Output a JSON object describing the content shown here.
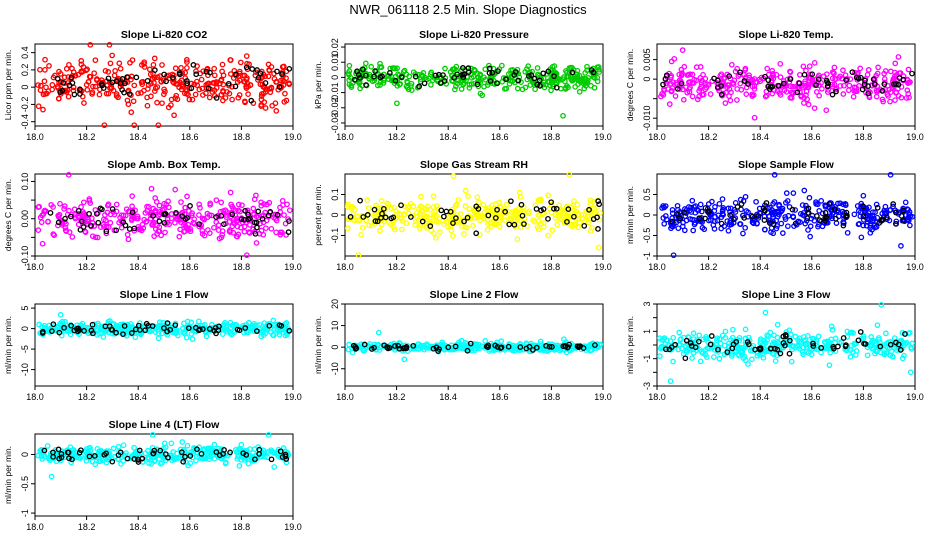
{
  "title": "NWR_061118  2.5 Min. Slope Diagnostics",
  "colors": {
    "red": "#ff0000",
    "green": "#00cc00",
    "magenta": "#ff00ff",
    "yellow": "#ffff00",
    "blue": "#0000ff",
    "cyan": "#00ffff",
    "overlay": "#000000"
  },
  "chart_data": [
    {
      "type": "scatter",
      "title": "Slope Li-820 CO2",
      "ylabel": "Licor ppm per min.",
      "xlim": [
        18.0,
        19.0
      ],
      "ylim": [
        -0.45,
        0.5
      ],
      "xticks": [
        18.0,
        18.2,
        18.4,
        18.6,
        18.8,
        19.0
      ],
      "yticks": [
        -0.4,
        -0.2,
        0.0,
        0.2,
        0.4
      ],
      "color": "red",
      "center": 0.05,
      "spread": 0.18,
      "series_description": "dense colored points with black overlay points"
    },
    {
      "type": "scatter",
      "title": "Slope Li-820 Pressure",
      "ylabel": "kPa per min.",
      "xlim": [
        18.0,
        19.0
      ],
      "ylim": [
        -0.032,
        0.022
      ],
      "xticks": [
        18.0,
        18.2,
        18.4,
        18.6,
        18.8,
        19.0
      ],
      "yticks": [
        -0.03,
        -0.02,
        -0.01,
        0.0,
        0.01,
        0.02
      ],
      "color": "green",
      "center": 0.0,
      "spread": 0.006
    },
    {
      "type": "scatter",
      "title": "Slope Li-820 Temp.",
      "ylabel": "degrees C per min.",
      "xlim": [
        18.0,
        19.0
      ],
      "ylim": [
        -0.012,
        0.009
      ],
      "xticks": [
        18.0,
        18.2,
        18.4,
        18.6,
        18.8,
        19.0
      ],
      "yticks": [
        -0.01,
        -0.005,
        0.0,
        0.005
      ],
      "yticklabels": [
        "-0.010",
        "",
        "0",
        "0.005"
      ],
      "color": "magenta",
      "center": -0.001,
      "spread": 0.003
    },
    {
      "type": "scatter",
      "title": "Slope Amb. Box Temp.",
      "ylabel": "degrees C per min.",
      "xlim": [
        18.0,
        19.0
      ],
      "ylim": [
        -0.1,
        0.12
      ],
      "xticks": [
        18.0,
        18.2,
        18.4,
        18.6,
        18.8,
        19.0
      ],
      "yticks": [
        -0.1,
        -0.05,
        0.0,
        0.05,
        0.1
      ],
      "yticklabels": [
        "-0.10",
        "",
        "0.00",
        "",
        "0.10"
      ],
      "color": "magenta",
      "center": 0.0,
      "spread": 0.035
    },
    {
      "type": "scatter",
      "title": "Slope Gas Stream RH",
      "ylabel": "percent per min.",
      "xlim": [
        18.0,
        19.0
      ],
      "ylim": [
        -0.2,
        0.2
      ],
      "xticks": [
        18.0,
        18.2,
        18.4,
        18.6,
        18.8,
        19.0
      ],
      "yticks": [
        -0.1,
        0.0,
        0.1
      ],
      "color": "yellow",
      "center": 0.0,
      "spread": 0.06
    },
    {
      "type": "scatter",
      "title": "Slope Sample Flow",
      "ylabel": "ml/min per min.",
      "xlim": [
        18.0,
        19.0
      ],
      "ylim": [
        -1.0,
        1.0
      ],
      "xticks": [
        18.0,
        18.2,
        18.4,
        18.6,
        18.8,
        19.0
      ],
      "yticks": [
        -1.0,
        -0.5,
        0.0,
        0.5
      ],
      "yticklabels": [
        "-1",
        "-0.5",
        "0",
        "0.5"
      ],
      "color": "blue",
      "center": 0.0,
      "spread": 0.28
    },
    {
      "type": "scatter",
      "title": "Slope Line 1 Flow",
      "ylabel": "ml/min per min.",
      "xlim": [
        18.0,
        19.0
      ],
      "ylim": [
        -14,
        6
      ],
      "xticks": [
        18.0,
        18.2,
        18.4,
        18.6,
        18.8,
        19.0
      ],
      "yticks": [
        -10,
        -5,
        0,
        5
      ],
      "color": "cyan",
      "center": 0.0,
      "spread": 1.2
    },
    {
      "type": "scatter",
      "title": "Slope Line 2 Flow",
      "ylabel": "ml/min per min.",
      "xlim": [
        18.0,
        19.0
      ],
      "ylim": [
        -18,
        20
      ],
      "xticks": [
        18.0,
        18.2,
        18.4,
        18.6,
        18.8,
        19.0
      ],
      "yticks": [
        -10,
        0,
        10,
        20
      ],
      "color": "cyan",
      "center": 0.0,
      "spread": 1.3
    },
    {
      "type": "scatter",
      "title": "Slope Line 3 Flow",
      "ylabel": "ml/min per min.",
      "xlim": [
        18.0,
        19.0
      ],
      "ylim": [
        -3,
        3
      ],
      "xticks": [
        18.0,
        18.2,
        18.4,
        18.6,
        18.8,
        19.0
      ],
      "yticks": [
        -3,
        -2,
        -1,
        0,
        1,
        2,
        3
      ],
      "yticklabels": [
        "-3",
        "",
        "-1",
        "",
        "1",
        "",
        "3"
      ],
      "color": "cyan",
      "center": 0.0,
      "spread": 0.75
    },
    {
      "type": "scatter",
      "title": "Slope Line 4 (LT) Flow",
      "ylabel": "ml/min per min.",
      "xlim": [
        18.0,
        19.0
      ],
      "ylim": [
        -1.05,
        0.35
      ],
      "xticks": [
        18.0,
        18.2,
        18.4,
        18.6,
        18.8,
        19.0
      ],
      "yticks": [
        -1.0,
        -0.5,
        0.0
      ],
      "color": "cyan",
      "center": 0.0,
      "spread": 0.1
    }
  ]
}
